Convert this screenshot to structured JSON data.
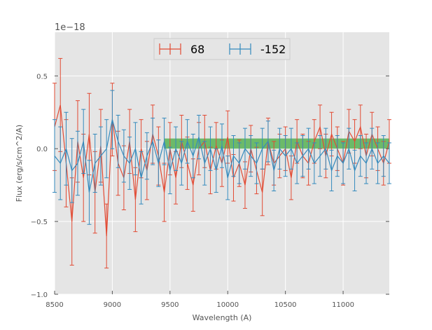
{
  "chart_data": {
    "type": "line",
    "title": "",
    "xlabel": "Wavelength (A)",
    "ylabel": "Flux (erg/s/cm^2/A)",
    "offset_text": "1e−18",
    "xlim": [
      8500,
      11400
    ],
    "ylim": [
      -1.0,
      0.8
    ],
    "xticks": [
      8500,
      9000,
      9500,
      10000,
      10500,
      11000
    ],
    "yticks": [
      -1.0,
      -0.5,
      0.0,
      0.5
    ],
    "xtick_labels": [
      "8500",
      "9000",
      "9500",
      "10000",
      "10500",
      "11000"
    ],
    "ytick_labels": [
      "−1.0",
      "−0.5",
      "0.0",
      "0.5"
    ],
    "grid": true,
    "legend_position": "top-center",
    "band": {
      "x_start": 9450,
      "x_end": 11400,
      "y_low": 0.0,
      "y_high": 0.07,
      "color": "#4daf4a"
    },
    "series": [
      {
        "name": "68",
        "color": "#e24a33",
        "x": [
          8500,
          8550,
          8600,
          8650,
          8700,
          8750,
          8800,
          8850,
          8900,
          8950,
          9000,
          9050,
          9100,
          9150,
          9200,
          9250,
          9300,
          9350,
          9400,
          9450,
          9500,
          9550,
          9600,
          9650,
          9700,
          9750,
          9800,
          9850,
          9900,
          9950,
          10000,
          10050,
          10100,
          10150,
          10200,
          10250,
          10300,
          10350,
          10400,
          10450,
          10500,
          10550,
          10600,
          10650,
          10700,
          10750,
          10800,
          10850,
          10900,
          10950,
          11000,
          11050,
          11100,
          11150,
          11200,
          11250,
          11300,
          11350,
          11400
        ],
        "y": [
          0.15,
          0.3,
          -0.1,
          -0.5,
          0.05,
          -0.2,
          0.1,
          -0.3,
          0.02,
          -0.6,
          0.2,
          -0.1,
          -0.2,
          0.05,
          -0.35,
          0.0,
          -0.15,
          0.1,
          -0.05,
          -0.3,
          0.0,
          -0.2,
          0.05,
          -0.1,
          -0.25,
          0.0,
          0.05,
          -0.15,
          0.02,
          -0.1,
          0.08,
          -0.2,
          -0.1,
          -0.25,
          0.0,
          -0.15,
          -0.3,
          0.05,
          -0.1,
          -0.05,
          0.0,
          -0.2,
          0.05,
          -0.05,
          -0.1,
          0.05,
          0.15,
          -0.05,
          0.1,
          0.0,
          -0.1,
          0.12,
          0.05,
          0.15,
          -0.05,
          0.1,
          0.0,
          -0.1,
          0.05
        ],
        "err": [
          0.3,
          0.32,
          0.3,
          0.3,
          0.28,
          0.3,
          0.28,
          0.28,
          0.25,
          0.22,
          0.25,
          0.22,
          0.22,
          0.22,
          0.22,
          0.2,
          0.2,
          0.2,
          0.2,
          0.2,
          0.18,
          0.18,
          0.18,
          0.18,
          0.18,
          0.18,
          0.18,
          0.16,
          0.16,
          0.16,
          0.18,
          0.16,
          0.16,
          0.16,
          0.16,
          0.16,
          0.16,
          0.16,
          0.15,
          0.15,
          0.15,
          0.15,
          0.15,
          0.15,
          0.15,
          0.15,
          0.15,
          0.15,
          0.15,
          0.15,
          0.15,
          0.15,
          0.15,
          0.15,
          0.15,
          0.15,
          0.15,
          0.15,
          0.15
        ]
      },
      {
        "name": "-152",
        "color": "#348abd",
        "x": [
          8500,
          8550,
          8600,
          8650,
          8700,
          8750,
          8800,
          8850,
          8900,
          8950,
          9000,
          9050,
          9100,
          9150,
          9200,
          9250,
          9300,
          9350,
          9400,
          9450,
          9500,
          9550,
          9600,
          9650,
          9700,
          9750,
          9800,
          9850,
          9900,
          9950,
          10000,
          10050,
          10100,
          10150,
          10200,
          10250,
          10300,
          10350,
          10400,
          10450,
          10500,
          10550,
          10600,
          10650,
          10700,
          10750,
          10800,
          10850,
          10900,
          10950,
          11000,
          11050,
          11100,
          11150,
          11200,
          11250,
          11300,
          11350,
          11400
        ],
        "y": [
          -0.05,
          -0.1,
          0.0,
          -0.15,
          -0.1,
          0.05,
          -0.3,
          -0.1,
          -0.05,
          0.0,
          0.2,
          0.05,
          -0.05,
          -0.1,
          0.0,
          -0.2,
          -0.05,
          0.05,
          -0.1,
          0.05,
          -0.15,
          0.0,
          -0.1,
          0.05,
          -0.05,
          0.08,
          -0.1,
          0.0,
          -0.15,
          0.02,
          -0.2,
          -0.05,
          -0.1,
          0.0,
          -0.05,
          -0.1,
          0.0,
          0.05,
          -0.15,
          0.0,
          -0.05,
          0.0,
          -0.1,
          -0.05,
          0.0,
          -0.1,
          -0.05,
          0.0,
          -0.15,
          -0.05,
          -0.1,
          0.0,
          -0.15,
          -0.05,
          -0.1,
          0.0,
          -0.1,
          -0.05,
          -0.1
        ],
        "err": [
          0.25,
          0.25,
          0.25,
          0.22,
          0.22,
          0.22,
          0.22,
          0.2,
          0.2,
          0.2,
          0.2,
          0.18,
          0.18,
          0.18,
          0.18,
          0.18,
          0.16,
          0.16,
          0.16,
          0.16,
          0.16,
          0.15,
          0.15,
          0.15,
          0.15,
          0.15,
          0.15,
          0.15,
          0.15,
          0.15,
          0.15,
          0.14,
          0.14,
          0.14,
          0.14,
          0.14,
          0.14,
          0.14,
          0.14,
          0.14,
          0.14,
          0.14,
          0.14,
          0.14,
          0.14,
          0.14,
          0.14,
          0.14,
          0.14,
          0.14,
          0.14,
          0.14,
          0.14,
          0.14,
          0.14,
          0.14,
          0.14,
          0.14,
          0.14
        ]
      }
    ]
  }
}
